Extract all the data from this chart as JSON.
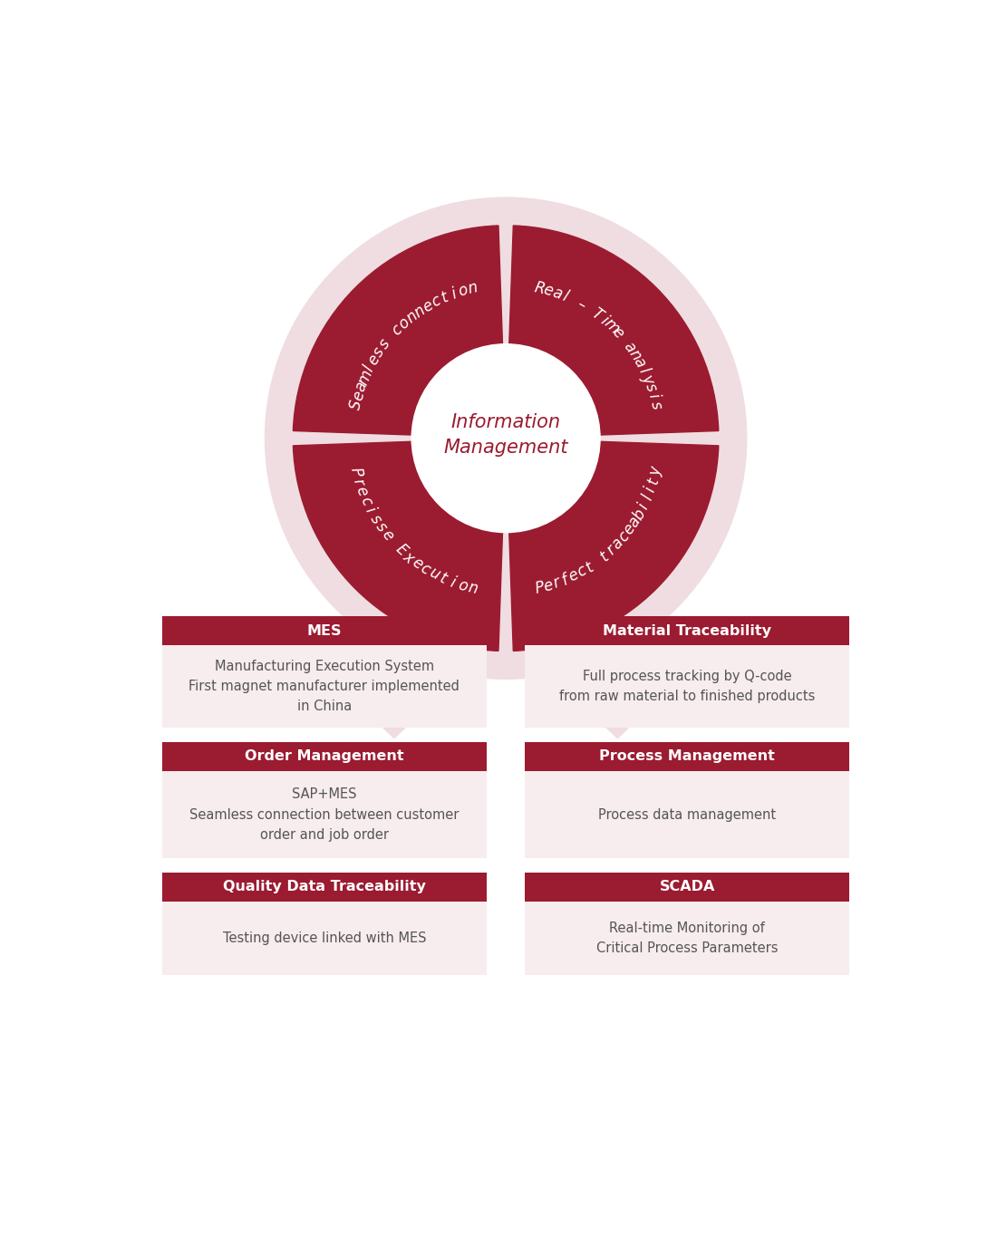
{
  "bg_color": "#ffffff",
  "ring_outer_color": "#f0dde1",
  "wedge_color": "#9b1b30",
  "center_color": "#ffffff",
  "center_text": "Information\nManagement",
  "center_text_color": "#9b1b30",
  "segment_labels": [
    "Seamless connection",
    "Real – Time analysis",
    "Perfect traceability",
    "Precisse Execution"
  ],
  "segment_label_color": "#ffffff",
  "arrow_color": "#f0dde1",
  "card_header_color": "#9b1b30",
  "card_header_text_color": "#ffffff",
  "card_body_color": "#f7ecee",
  "card_body_text_color": "#555555",
  "cards_left": [
    {
      "header": "MES",
      "body": "Manufacturing Execution System\nFirst magnet manufacturer implemented\nin China"
    },
    {
      "header": "Order Management",
      "body": "SAP+MES\nSeamless connection between customer\norder and job order"
    },
    {
      "header": "Quality Data Traceability",
      "body": "Testing device linked with MES"
    }
  ],
  "cards_right": [
    {
      "header": "Material Traceability",
      "body": "Full process tracking by Q-code\nfrom raw material to finished products"
    },
    {
      "header": "Process Management",
      "body": "Process data management"
    },
    {
      "header": "SCADA",
      "body": "Real-time Monitoring of\nCritical Process Parameters"
    }
  ]
}
